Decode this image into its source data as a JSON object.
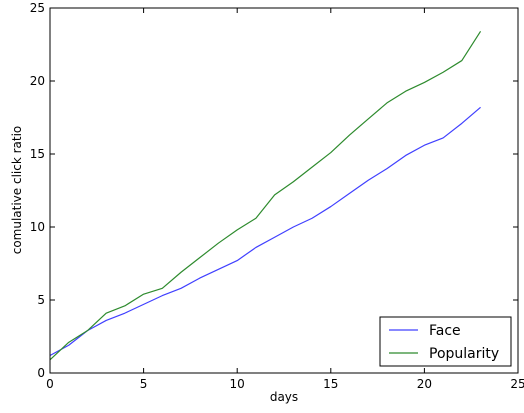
{
  "chart_data": {
    "type": "line",
    "title": "",
    "xlabel": "days",
    "ylabel": "comulative click ratio",
    "xlim": [
      0,
      25
    ],
    "ylim": [
      0,
      25
    ],
    "xticks": [
      0,
      5,
      10,
      15,
      20,
      25
    ],
    "yticks": [
      0,
      5,
      10,
      15,
      20,
      25
    ],
    "xtick_labels": [
      "0",
      "5",
      "10",
      "15",
      "20",
      "25"
    ],
    "ytick_labels": [
      "0",
      "5",
      "10",
      "15",
      "20",
      "25"
    ],
    "grid": false,
    "legend_position": "lower-right",
    "series": [
      {
        "name": "Face",
        "color": "#4040ff",
        "x": [
          0,
          1,
          2,
          3,
          4,
          5,
          6,
          7,
          8,
          9,
          10,
          11,
          12,
          13,
          14,
          15,
          16,
          17,
          18,
          19,
          20,
          21,
          22,
          23
        ],
        "y": [
          1.2,
          1.9,
          2.9,
          3.6,
          4.1,
          4.7,
          5.3,
          5.8,
          6.5,
          7.1,
          7.7,
          8.6,
          9.3,
          10.0,
          10.6,
          11.4,
          12.3,
          13.2,
          14.0,
          14.9,
          15.6,
          16.1,
          17.1,
          18.2
        ]
      },
      {
        "name": "Popularity",
        "color": "#2e8b2e",
        "x": [
          0,
          1,
          2,
          3,
          4,
          5,
          6,
          7,
          8,
          9,
          10,
          11,
          12,
          13,
          14,
          15,
          16,
          17,
          18,
          19,
          20,
          21,
          22,
          23
        ],
        "y": [
          0.9,
          2.1,
          2.9,
          4.1,
          4.6,
          5.4,
          5.8,
          6.9,
          7.9,
          8.9,
          9.8,
          10.6,
          12.2,
          13.1,
          14.1,
          15.1,
          16.3,
          17.4,
          18.5,
          19.3,
          19.9,
          20.6,
          21.4,
          23.4
        ]
      }
    ]
  }
}
